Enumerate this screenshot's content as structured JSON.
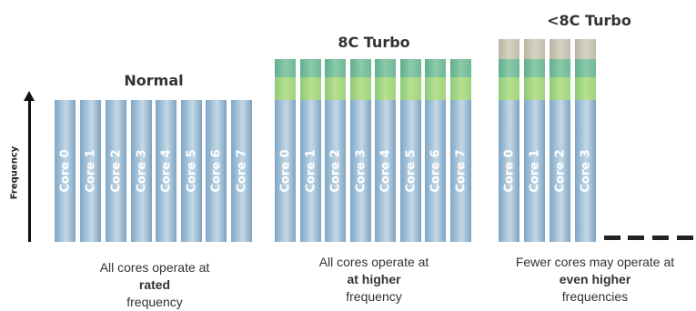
{
  "axis": {
    "label": "Frequency"
  },
  "groups": [
    {
      "title": "Normal",
      "cores": [
        "Core 0",
        "Core 1",
        "Core 2",
        "Core 3",
        "Core 4",
        "Core 5",
        "Core 6",
        "Core 7"
      ],
      "caption": {
        "line1": "All cores operate at",
        "line2": "rated",
        "line3": "frequency"
      }
    },
    {
      "title": "8C Turbo",
      "cores": [
        "Core 0",
        "Core 1",
        "Core 2",
        "Core 3",
        "Core 4",
        "Core 5",
        "Core 6",
        "Core 7"
      ],
      "caption": {
        "line1": "All cores operate at",
        "line2": "at higher",
        "line3": "frequency"
      }
    },
    {
      "title": "<8C Turbo",
      "cores": [
        "Core 0",
        "Core 1",
        "Core 2",
        "Core 3"
      ],
      "caption": {
        "line1": "Fewer cores may operate at",
        "line2": "even higher",
        "line3": "frequencies"
      }
    }
  ],
  "colors": {
    "core": "#9dbcd3",
    "turbo_green": "#9ed47e",
    "turbo_teal": "#6fb898",
    "turbo_grey": "#c1bdab"
  }
}
